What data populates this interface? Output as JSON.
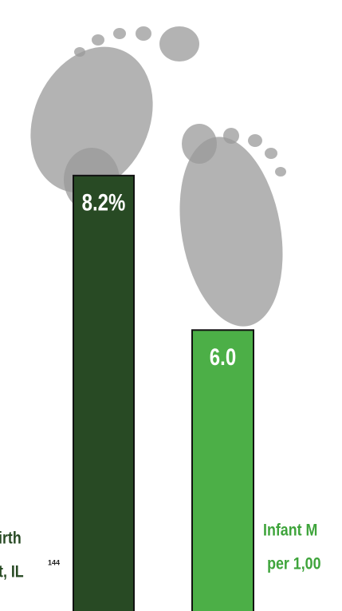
{
  "chart_data": {
    "type": "bar",
    "categories": [
      [
        "irth",
        "t, IL"
      ],
      [
        "Infant M",
        "per 1,00"
      ]
    ],
    "values": [
      8.2,
      6.0
    ],
    "value_labels": [
      "8.2%",
      "6.0"
    ],
    "colors": [
      "#284a24",
      "#4caf47"
    ],
    "label_colors": [
      "#284a24",
      "#3ea43b"
    ],
    "annotations": [
      "144"
    ],
    "ylim": [
      2,
      10.7
    ]
  }
}
